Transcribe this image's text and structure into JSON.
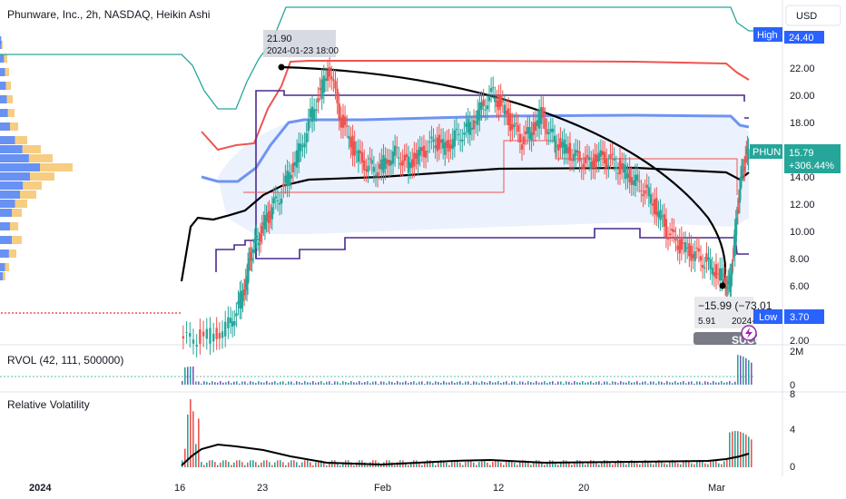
{
  "header": {
    "title": "Phunware, Inc., 2h, NASDAQ, Heikin Ashi",
    "currency": "USD"
  },
  "colors": {
    "up": "#26a69a",
    "down": "#ef5350",
    "channel_blue": "#4e7ef2",
    "channel_fill": "#dbe5fb",
    "box_purple": "#4a2a8f",
    "vwap_red": "#ef5350",
    "mid_black": "#000000",
    "outer_green": "#26a69a",
    "high_badge": "#2962ff",
    "price_badge": "#26a69a"
  },
  "price_scale": {
    "ticks": [
      "22.00",
      "20.00",
      "18.00",
      "16.00",
      "14.00",
      "12.00",
      "10.00",
      "8.00",
      "6.00",
      "4.00",
      "2.00"
    ],
    "high_label": "High",
    "high_value": "24.40",
    "low_label": "Low",
    "low_value": "3.70",
    "last_symbol": "PHUN",
    "last_value": "15.79",
    "last_change": "+306.44%"
  },
  "annotations": {
    "peak_value": "21.90",
    "peak_date": "2024-01-23 18:00",
    "measure_change": "−15.99 (−73.01",
    "measure_low": "5.91",
    "measure_date": "2024-",
    "banner": "SUCC"
  },
  "time_axis": {
    "labels": [
      "2024",
      "16",
      "23",
      "Feb",
      "12",
      "20",
      "Mar"
    ]
  },
  "panes": {
    "rvol": {
      "label": "RVOL (42, 111, 500000)",
      "ticks": [
        "2M",
        "0"
      ]
    },
    "relvol": {
      "label": "Relative Volatility",
      "ticks": [
        "8",
        "4",
        "0"
      ]
    }
  },
  "chart_data": {
    "type": "candlestick",
    "series": [
      {
        "name": "PHUN",
        "points": [
          [
            0.2,
            1.9
          ],
          [
            0.27,
            2.2
          ],
          [
            0.34,
            2.4
          ],
          [
            0.4,
            3.1
          ],
          [
            0.44,
            4.6
          ],
          [
            0.47,
            6.2
          ],
          [
            0.49,
            8.4
          ],
          [
            0.52,
            9.3
          ],
          [
            0.55,
            10.6
          ],
          [
            0.58,
            11.6
          ],
          [
            0.62,
            12.9
          ],
          [
            0.66,
            14.6
          ],
          [
            0.7,
            16.2
          ],
          [
            0.74,
            18.4
          ],
          [
            0.78,
            20.3
          ],
          [
            0.82,
            21.9
          ],
          [
            0.86,
            18.6
          ],
          [
            0.9,
            16.7
          ],
          [
            0.94,
            15.4
          ],
          [
            0.98,
            14.8
          ],
          [
            1.02,
            14.6
          ],
          [
            1.06,
            15.3
          ],
          [
            1.1,
            15.8
          ],
          [
            1.14,
            14.9
          ],
          [
            1.18,
            15.4
          ],
          [
            1.22,
            16.0
          ],
          [
            1.26,
            16.6
          ],
          [
            1.3,
            16.1
          ],
          [
            1.34,
            16.9
          ],
          [
            1.38,
            17.4
          ],
          [
            1.42,
            18.1
          ],
          [
            1.46,
            19.4
          ],
          [
            1.5,
            20.1
          ],
          [
            1.54,
            19.0
          ],
          [
            1.58,
            17.7
          ],
          [
            1.62,
            16.6
          ],
          [
            1.66,
            17.4
          ],
          [
            1.7,
            18.6
          ],
          [
            1.74,
            17.1
          ],
          [
            1.78,
            16.4
          ],
          [
            1.82,
            15.8
          ],
          [
            1.86,
            15.2
          ],
          [
            1.9,
            14.9
          ],
          [
            1.94,
            15.4
          ],
          [
            1.98,
            15.2
          ],
          [
            2.02,
            14.8
          ],
          [
            2.06,
            14.2
          ],
          [
            2.1,
            13.6
          ],
          [
            2.14,
            12.9
          ],
          [
            2.18,
            11.6
          ],
          [
            2.22,
            10.1
          ],
          [
            2.26,
            9.2
          ],
          [
            2.3,
            8.6
          ],
          [
            2.34,
            8.3
          ],
          [
            2.38,
            7.8
          ],
          [
            2.42,
            7.2
          ],
          [
            2.46,
            6.6
          ],
          [
            2.48,
            5.91
          ],
          [
            2.5,
            8.8
          ],
          [
            2.52,
            12.6
          ],
          [
            2.54,
            14.9
          ],
          [
            2.56,
            15.79
          ]
        ]
      }
    ],
    "x_labels": [
      "2024",
      "16",
      "23",
      "Feb",
      "12",
      "20",
      "Mar"
    ],
    "y_range": [
      2,
      24.4
    ],
    "high": 24.4,
    "low": 3.7,
    "last": 15.79,
    "change_pct": "+306.44%"
  }
}
